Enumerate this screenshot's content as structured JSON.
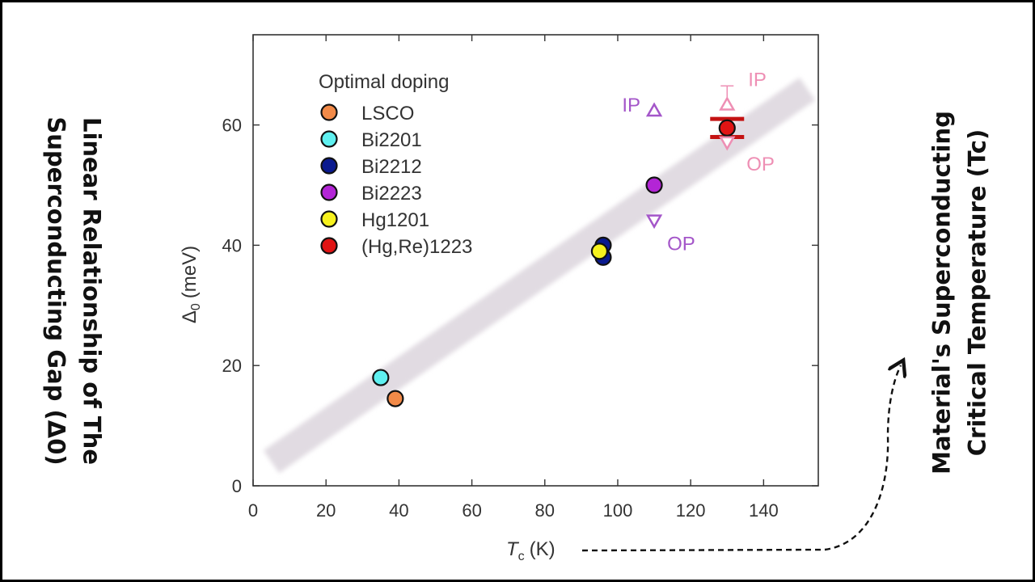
{
  "titles": {
    "left": [
      "Linear Relationship of The",
      "Superconducting Gap (Δ0)"
    ],
    "right": [
      "Material's Superconducting",
      "Critical Temperature (Tc)"
    ]
  },
  "colors": {
    "LSCO": "#f28a48",
    "Bi2201": "#5ff0f0",
    "Bi2212": "#0a1a8f",
    "Bi2223": "#b325d6",
    "Hg1201": "#f7f21e",
    "HgRe1223": "#e01414",
    "IP_Bi2223": "#a456c9",
    "IP_HgRe": "#ee8fb4",
    "trend": "#e1dbe2",
    "errorbar": "#c41212"
  },
  "chart_data": {
    "type": "scatter",
    "title": "",
    "xlabel": "T_c (K)",
    "xlabel_main": "T",
    "xlabel_sub": "c",
    "xlabel_unit": "(K)",
    "ylabel": "Δ0 (meV)",
    "ylabel_main": "Δ",
    "ylabel_sub": "0",
    "ylabel_unit": "(meV)",
    "xlim": [
      0,
      155
    ],
    "ylim": [
      0,
      75
    ],
    "xticks": [
      0,
      20,
      40,
      60,
      80,
      100,
      120,
      140
    ],
    "yticks": [
      0,
      20,
      40,
      60
    ],
    "legend_title": "Optimal doping",
    "legend_location": "top-left",
    "trend_line": {
      "x": [
        5,
        152
      ],
      "y": [
        4,
        66
      ]
    },
    "series": [
      {
        "name": "LSCO",
        "color_key": "LSCO",
        "marker": "circle",
        "points": [
          [
            39,
            14.5
          ]
        ]
      },
      {
        "name": "Bi2201",
        "color_key": "Bi2201",
        "marker": "circle",
        "points": [
          [
            35,
            18
          ]
        ]
      },
      {
        "name": "Bi2212",
        "color_key": "Bi2212",
        "marker": "circle",
        "points": [
          [
            96,
            40
          ],
          [
            96,
            38
          ]
        ]
      },
      {
        "name": "Bi2223",
        "color_key": "Bi2223",
        "marker": "circle",
        "points": [
          [
            110,
            50
          ]
        ]
      },
      {
        "name": "Hg1201",
        "color_key": "Hg1201",
        "marker": "circle",
        "points": [
          [
            95,
            39
          ]
        ]
      },
      {
        "name": "(Hg,Re)1223",
        "color_key": "HgRe1223",
        "marker": "circle",
        "points": [
          [
            130,
            59.5
          ]
        ],
        "error_bar": [
          58,
          61
        ]
      }
    ],
    "annotations": [
      {
        "text": "IP",
        "series": "Bi2223",
        "marker": "triangle-up",
        "x": 110,
        "y": 62.5,
        "color_key": "IP_Bi2223"
      },
      {
        "text": "OP",
        "series": "Bi2223",
        "marker": "triangle-down",
        "x": 110,
        "y": 44,
        "color_key": "IP_Bi2223"
      },
      {
        "text": "IP",
        "series": "(Hg,Re)1223",
        "marker": "triangle-up",
        "x": 130,
        "y": 63.5,
        "error_bar": [
          61,
          66.5
        ],
        "color_key": "IP_HgRe"
      },
      {
        "text": "OP",
        "series": "(Hg,Re)1223",
        "marker": "triangle-down",
        "x": 130,
        "y": 57,
        "color_key": "IP_HgRe"
      }
    ]
  }
}
